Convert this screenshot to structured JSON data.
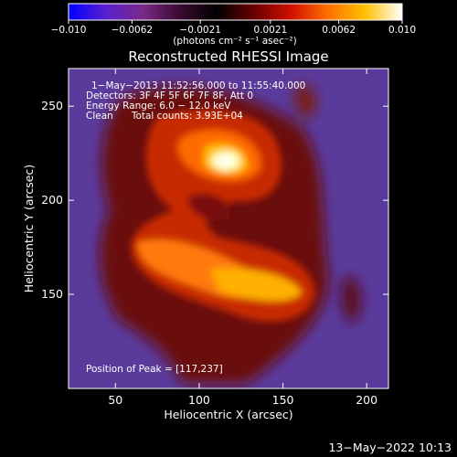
{
  "chart_data": {
    "type": "heatmap",
    "title": "Reconstructed RHESSI Image",
    "xlabel": "Heliocentric X (arcsec)",
    "ylabel": "Heliocentric Y (arcsec)",
    "xlim": [
      22,
      213
    ],
    "ylim": [
      100,
      270
    ],
    "xticks": [
      50,
      100,
      150,
      200
    ],
    "yticks": [
      150,
      200,
      250
    ],
    "colorbar": {
      "range": [
        -0.01,
        0.01
      ],
      "tick_values": [
        -0.01,
        -0.0062,
        -0.0021,
        0.0021,
        0.0062,
        0.01
      ],
      "tick_labels": [
        "−0.010",
        "−0.0062",
        "−0.0021",
        "0.0021",
        "0.0062",
        "0.010"
      ],
      "units": "(photons cm⁻² s⁻¹ asec⁻²)",
      "colormap": [
        "#0000ff",
        "#5a1fd0",
        "#7a2a8a",
        "#3a0a30",
        "#000000",
        "#6a0000",
        "#d01000",
        "#ff7000",
        "#ffc000",
        "#ffffff"
      ]
    },
    "peak": {
      "x": 117,
      "y": 237
    },
    "background_color": "#5a3b9c",
    "info_lines": [
      "1−May−2013 11:52:56.000 to 11:55:40.000",
      "Detectors: 3F 4F 5F 6F 7F 8F, Att 0",
      "Energy Range: 6.0 − 12.0 keV",
      "Clean      Total counts: 3.93E+04"
    ],
    "peak_label": "Position of Peak = [117,237]"
  },
  "footer": {
    "timestamp": "13−May−2022 10:13"
  }
}
